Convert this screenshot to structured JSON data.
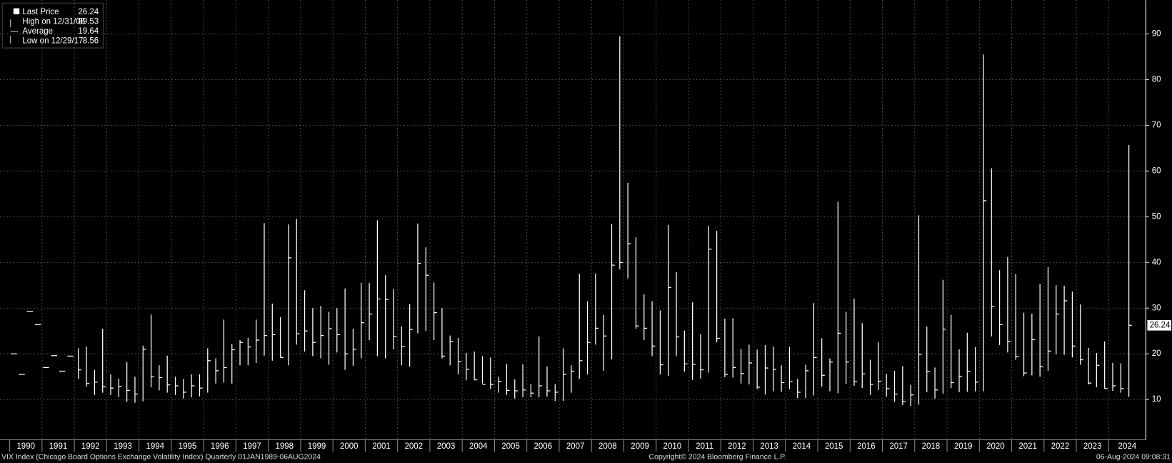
{
  "chart_data": {
    "type": "ohlc",
    "title": "VIX Index (Chicago Board Options Exchange Volatility Index)  Quarterly 01JAN1989-06AUG2024",
    "copyright": "Copyright© 2024 Bloomberg Finance L.P.",
    "timestamp": "06-Aug-2024 09:08:31",
    "legend": [
      {
        "label": "Last Price",
        "value": 26.24
      },
      {
        "label": "High on 12/31/08",
        "value": 89.53
      },
      {
        "label": "Average",
        "value": 19.64
      },
      {
        "label": "Low on 12/29/17",
        "value": 8.56
      }
    ],
    "last_price_label": 26.24,
    "color": "#ffffff",
    "xlim": [
      1989.7,
      2025.15
    ],
    "xticks": [
      1990,
      1991,
      1992,
      1993,
      1994,
      1995,
      1996,
      1997,
      1998,
      1999,
      2000,
      2001,
      2002,
      2003,
      2004,
      2005,
      2006,
      2007,
      2008,
      2009,
      2010,
      2011,
      2012,
      2013,
      2014,
      2015,
      2016,
      2017,
      2018,
      2019,
      2020,
      2021,
      2022,
      2023,
      2024
    ],
    "ylim": [
      1.2,
      97.4
    ],
    "yticks": [
      10,
      20,
      30,
      40,
      50,
      60,
      70,
      80,
      90
    ],
    "grid": true,
    "x": [
      1990.125,
      1990.375,
      1990.625,
      1990.875,
      1991.125,
      1991.375,
      1991.625,
      1991.875,
      1992.125,
      1992.375,
      1992.625,
      1992.875,
      1993.125,
      1993.375,
      1993.625,
      1993.875,
      1994.125,
      1994.375,
      1994.625,
      1994.875,
      1995.125,
      1995.375,
      1995.625,
      1995.875,
      1996.125,
      1996.375,
      1996.625,
      1996.875,
      1997.125,
      1997.375,
      1997.625,
      1997.875,
      1998.125,
      1998.375,
      1998.625,
      1998.875,
      1999.125,
      1999.375,
      1999.625,
      1999.875,
      2000.125,
      2000.375,
      2000.625,
      2000.875,
      2001.125,
      2001.375,
      2001.625,
      2001.875,
      2002.125,
      2002.375,
      2002.625,
      2002.875,
      2003.125,
      2003.375,
      2003.625,
      2003.875,
      2004.125,
      2004.375,
      2004.625,
      2004.875,
      2005.125,
      2005.375,
      2005.625,
      2005.875,
      2006.125,
      2006.375,
      2006.625,
      2006.875,
      2007.125,
      2007.375,
      2007.625,
      2007.875,
      2008.125,
      2008.375,
      2008.625,
      2008.875,
      2009.125,
      2009.375,
      2009.625,
      2009.875,
      2010.125,
      2010.375,
      2010.625,
      2010.875,
      2011.125,
      2011.375,
      2011.625,
      2011.875,
      2012.125,
      2012.375,
      2012.625,
      2012.875,
      2013.125,
      2013.375,
      2013.625,
      2013.875,
      2014.125,
      2014.375,
      2014.625,
      2014.875,
      2015.125,
      2015.375,
      2015.625,
      2015.875,
      2016.125,
      2016.375,
      2016.625,
      2016.875,
      2017.125,
      2017.375,
      2017.625,
      2017.875,
      2018.125,
      2018.375,
      2018.625,
      2018.875,
      2019.125,
      2019.375,
      2019.625,
      2019.875,
      2020.125,
      2020.375,
      2020.625,
      2020.875,
      2021.125,
      2021.375,
      2021.625,
      2021.875,
      2022.125,
      2022.375,
      2022.625,
      2022.875,
      2023.125,
      2023.375,
      2023.625,
      2023.875,
      2024.125,
      2024.375,
      2024.625
    ],
    "high": [
      null,
      null,
      null,
      null,
      null,
      null,
      null,
      null,
      21.2,
      21.6,
      16.5,
      25.5,
      15.5,
      14.6,
      18.2,
      15,
      21.8,
      28.6,
      17.5,
      19.6,
      15,
      14.5,
      15.5,
      15.5,
      21.2,
      19,
      27.5,
      22.2,
      23,
      23.5,
      27.5,
      48.6,
      31,
      28,
      48.3,
      49.5,
      33.9,
      30,
      30.5,
      29.2,
      30,
      34.3,
      25.5,
      35.5,
      35.5,
      49.2,
      37.2,
      34.2,
      26,
      30.9,
      48.5,
      43.3,
      35.6,
      30,
      24,
      23.5,
      20.2,
      20.5,
      19.5,
      19.2,
      14.9,
      17.8,
      14.4,
      17.7,
      13.4,
      23.8,
      17.2,
      13.4,
      21.2,
      17.5,
      37.5,
      31.5,
      37.6,
      28.5,
      48.4,
      89.5,
      57.4,
      45.5,
      33,
      31.5,
      29.5,
      48.2,
      37.9,
      25.1,
      31.3,
      24.3,
      48,
      46.9,
      27.7,
      27.8,
      21.1,
      22,
      20.9,
      21.9,
      21.6,
      17.5,
      21.5,
      14.5,
      17.6,
      31.1,
      23.4,
      19,
      53.3,
      29.2,
      32.1,
      26.7,
      18.7,
      22.5,
      15.6,
      16.3,
      17.3,
      13.2,
      50.3,
      26,
      17,
      36.2,
      28.5,
      21,
      24.6,
      21.5,
      85.5,
      60.6,
      38.3,
      41.2,
      37.5,
      29,
      28.8,
      35.3,
      39,
      35,
      34.9,
      33.6,
      30.8,
      21.3,
      20.2,
      22.7,
      18,
      17.9,
      65.7
    ],
    "low": [
      null,
      null,
      null,
      null,
      null,
      null,
      null,
      null,
      14.5,
      12.8,
      11,
      11.5,
      11,
      10.5,
      9.5,
      9.3,
      9.6,
      12.7,
      12,
      11.5,
      11,
      10.2,
      10.5,
      10.7,
      11.5,
      13.5,
      13.7,
      13.5,
      17.5,
      17.5,
      18,
      19.6,
      18.5,
      19.2,
      17.5,
      22,
      20.5,
      19.5,
      19,
      17.6,
      20.3,
      16.5,
      17.4,
      19,
      23,
      19.5,
      19,
      21,
      17.5,
      17.2,
      24.5,
      25,
      23,
      19,
      17.5,
      15.5,
      14.2,
      14.3,
      13.5,
      12.3,
      11.5,
      11,
      10.2,
      10.5,
      10.5,
      10.5,
      10.6,
      9.7,
      9.7,
      11.5,
      14.5,
      15.5,
      22,
      16.3,
      18.8,
      38.5,
      36.5,
      25.5,
      23,
      19.5,
      15.5,
      15.2,
      19.5,
      16.1,
      14.3,
      14.6,
      15.9,
      22.5,
      14.9,
      14.8,
      13.5,
      13.3,
      12.3,
      11.1,
      11.8,
      11.7,
      12.3,
      10.3,
      10.3,
      10.9,
      12.8,
      11.8,
      11.4,
      13.4,
      13,
      12.5,
      11,
      12.1,
      10.6,
      9.5,
      8.8,
      8.6,
      8.9,
      11.6,
      10.2,
      11.3,
      12.5,
      11.6,
      11.7,
      11.8,
      11.8,
      23.8,
      21.9,
      20.3,
      18.7,
      15.1,
      15.3,
      15,
      16.3,
      19.9,
      19.8,
      19.2,
      17.6,
      13.3,
      12.7,
      12.4,
      11.9,
      11.5,
      10.6
    ],
    "close": [
      20,
      15.5,
      29.3,
      26.4,
      17,
      19.6,
      16.2,
      19.5,
      16.5,
      13.5,
      13.8,
      12.8,
      12.5,
      12.9,
      12,
      11.2,
      21,
      15,
      14.8,
      13.2,
      13,
      11.6,
      13,
      12.5,
      18.5,
      16.3,
      17,
      20.9,
      22.5,
      21.5,
      23,
      24,
      24.2,
      19.2,
      41,
      24.4,
      25,
      22.5,
      24,
      25.5,
      24.2,
      20,
      21,
      26.8,
      28.7,
      32,
      31.9,
      23.8,
      21.6,
      25.3,
      39.8,
      37.2,
      29,
      19.5,
      22.7,
      18.3,
      16.6,
      14.3,
      13.3,
      13.3,
      14,
      12,
      11.9,
      12.1,
      11.4,
      13,
      11.9,
      11.6,
      15.5,
      16.2,
      18.5,
      22.5,
      25.6,
      23.9,
      39.4,
      40,
      44.1,
      26.1,
      25.6,
      21.7,
      17.6,
      34.5,
      23.7,
      17.8,
      17.7,
      16.5,
      42.9,
      23.4,
      15.5,
      17,
      15.7,
      18,
      12.7,
      16.9,
      16.6,
      13.7,
      13.9,
      11.6,
      16.3,
      19.2,
      15.3,
      18.2,
      24.5,
      18.2,
      13.9,
      15.6,
      13.3,
      14,
      12.4,
      11.2,
      9.5,
      11,
      19.9,
      16.1,
      12.1,
      25.4,
      13.7,
      15.1,
      16.2,
      13.8,
      53.5,
      30.4,
      26.4,
      22.7,
      19.4,
      15.8,
      23.1,
      17.2,
      20.6,
      28.7,
      31.6,
      21.7,
      18.7,
      13.6,
      17.5,
      12.4,
      13,
      12.4,
      26.24
    ]
  }
}
